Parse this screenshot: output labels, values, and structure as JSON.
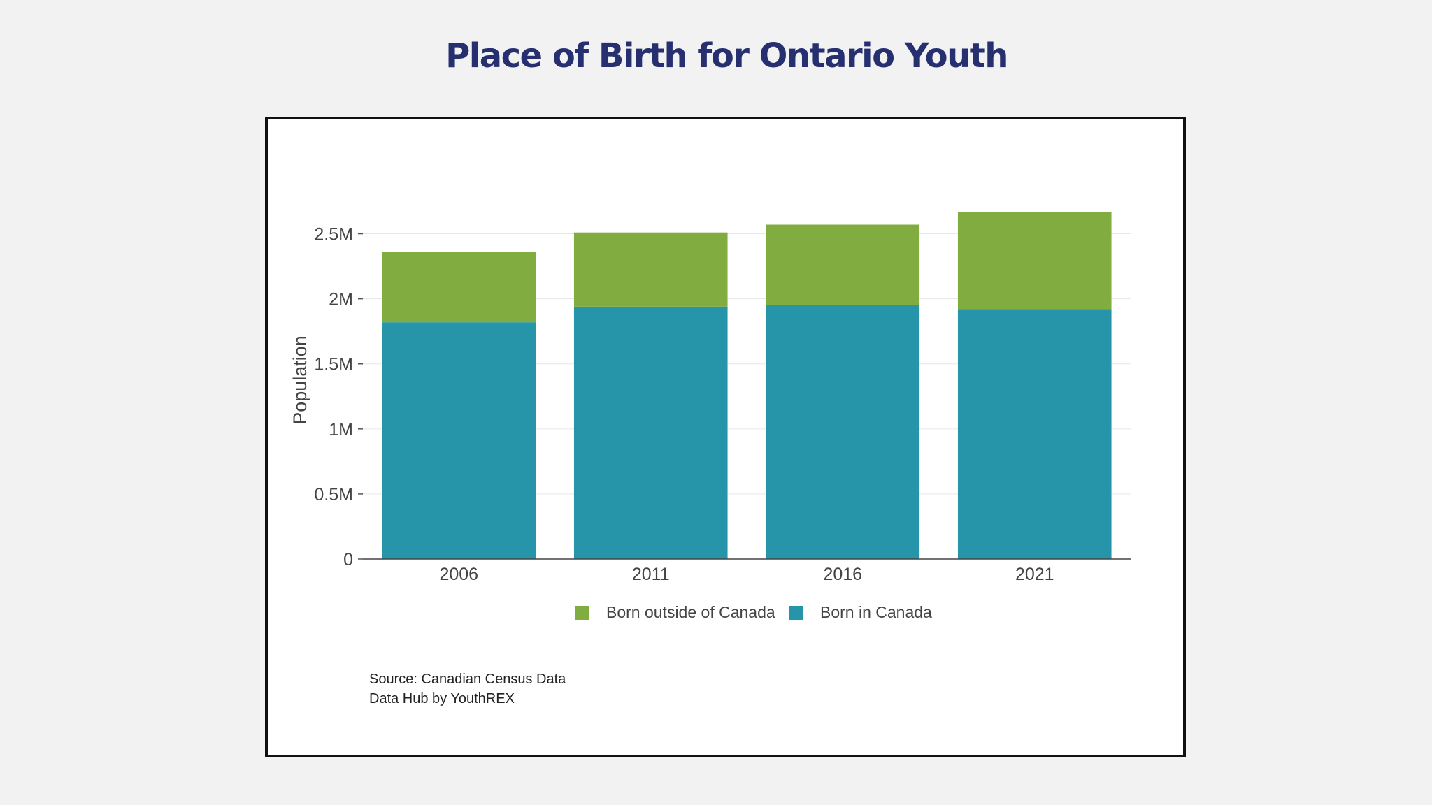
{
  "page": {
    "title": "Place of Birth for Ontario Youth"
  },
  "chart_data": {
    "type": "bar",
    "stacked": true,
    "categories": [
      "2006",
      "2011",
      "2016",
      "2021"
    ],
    "series": [
      {
        "name": "Born in Canada",
        "color": "#2795a9",
        "values": [
          1820000,
          1940000,
          1955000,
          1920000
        ]
      },
      {
        "name": "Born outside of Canada",
        "color": "#81ad40",
        "values": [
          540000,
          570000,
          615000,
          745000
        ]
      }
    ],
    "ylabel": "Population",
    "ylim": [
      0,
      2750000
    ],
    "yticks": [
      0,
      500000,
      1000000,
      1500000,
      2000000,
      2500000
    ],
    "ytick_labels": [
      "0",
      "0.5M",
      "1M",
      "1.5M",
      "2M",
      "2.5M"
    ],
    "grid": true,
    "legend": {
      "position": "bottom-center",
      "entries": [
        "Born outside of Canada",
        "Born in Canada"
      ]
    }
  },
  "source": {
    "line1": "Source: Canadian Census Data",
    "line2": "Data Hub by YouthREX"
  }
}
